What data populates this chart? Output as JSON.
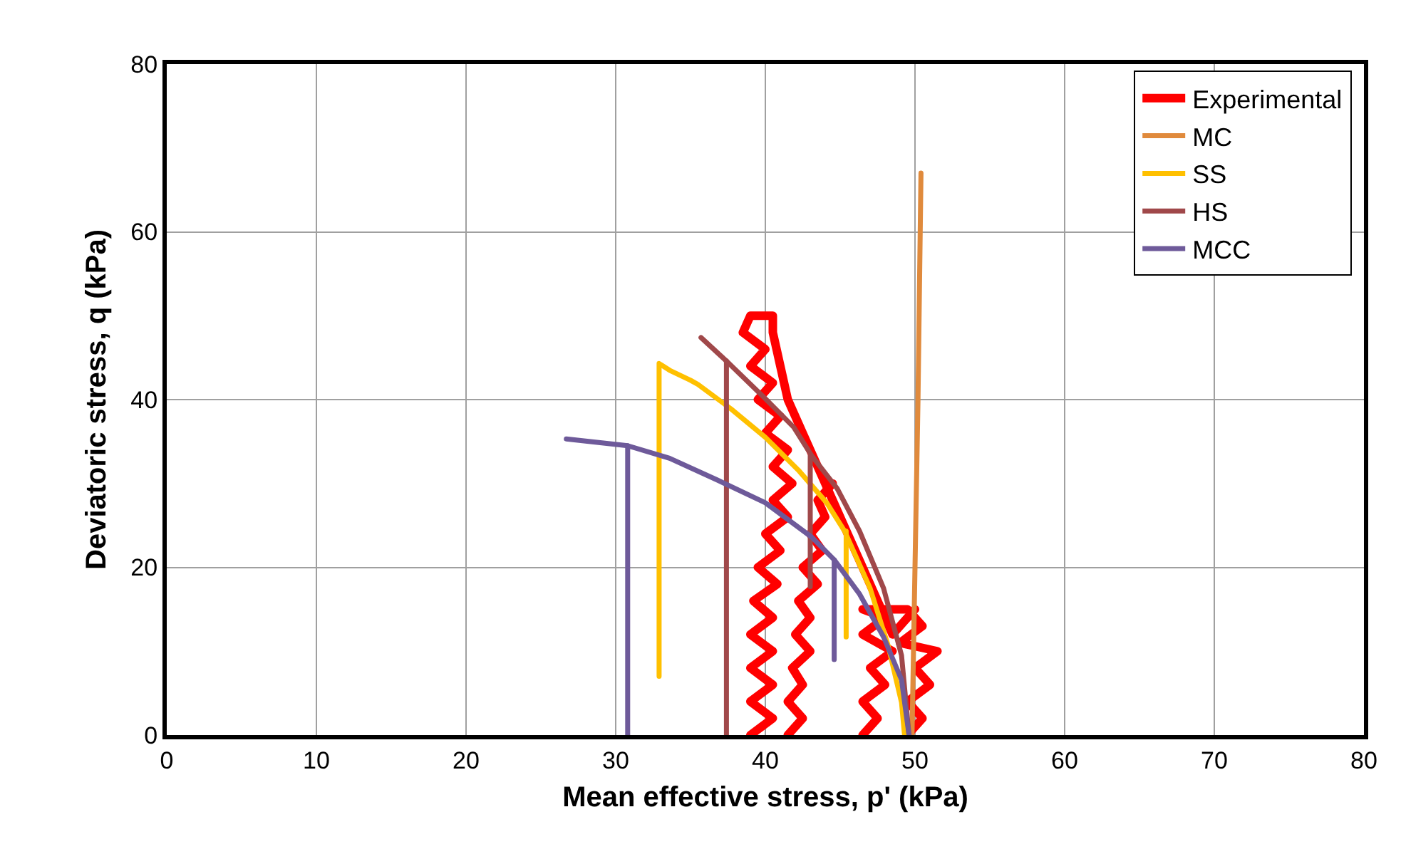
{
  "chart_data": {
    "type": "line",
    "xlabel": "Mean effective stress, p' (kPa)",
    "ylabel": "Deviatoric stress, q (kPa)",
    "xlim": [
      0,
      80
    ],
    "ylim": [
      0,
      80
    ],
    "xticks": [
      0,
      10,
      20,
      30,
      40,
      50,
      60,
      70,
      80
    ],
    "yticks": [
      0,
      20,
      40,
      60,
      80
    ],
    "grid": true,
    "legend": "top right",
    "marker": "none",
    "line_style": "solid",
    "series": [
      {
        "name": "Experimental",
        "color": "#ff0000",
        "x": [
          39,
          40.5,
          39,
          40.5,
          39,
          40.5,
          39,
          40.5,
          39.2,
          40.8,
          39.5,
          41,
          40,
          41.5,
          40.5,
          41.8,
          40.5,
          41.5,
          40,
          41,
          39.5,
          40.5,
          39,
          40,
          38.5,
          39,
          40.5,
          40.5,
          41,
          41.5,
          42.5,
          43.5,
          44.5,
          45.5,
          46.5,
          47.5,
          48.5,
          50,
          null,
          41.5,
          42.5,
          41.5,
          42.5,
          41.8,
          43,
          42,
          43,
          42.2,
          43.5,
          42.5,
          43.8,
          43,
          44,
          43.5,
          44.5,
          null,
          46.5,
          47.5,
          46.5,
          48,
          47,
          48.5,
          46.5,
          48,
          46.5,
          49.5,
          50.5,
          49,
          51.5,
          50,
          51,
          49.5,
          50.5,
          49.5
        ],
        "values": [
          0,
          2,
          4,
          6,
          8,
          10,
          12,
          14,
          16,
          18,
          20,
          22,
          24,
          26,
          28,
          30,
          32,
          34,
          36,
          38,
          40,
          42,
          44,
          46,
          48,
          50,
          50,
          48,
          44,
          40,
          36,
          32,
          28,
          24,
          20,
          16,
          12,
          15,
          null,
          0,
          2,
          4,
          6,
          8,
          10,
          12,
          14,
          16,
          18,
          20,
          22,
          24,
          26,
          28,
          30,
          null,
          0,
          2,
          4,
          6,
          8,
          10,
          12,
          14,
          15,
          15,
          13,
          11,
          10,
          8,
          6,
          4,
          2,
          0
        ]
      },
      {
        "name": "MC",
        "color": "#e08a3c",
        "x": [
          49.8,
          50,
          50.2,
          50.4
        ],
        "values": [
          0,
          20,
          40,
          67
        ]
      },
      {
        "name": "SS",
        "color": "#ffc000",
        "x": [
          32.9,
          32.9,
          33.6,
          35,
          35.5,
          37.7,
          40,
          42.2,
          44.1,
          45.3,
          47,
          48.2,
          49.1,
          49.3,
          null,
          45.4,
          45.4
        ],
        "values": [
          7,
          44.3,
          43.5,
          42.3,
          41.8,
          38.9,
          35.5,
          31.6,
          27.7,
          24.3,
          17.5,
          10.7,
          3.9,
          0,
          null,
          24.3,
          11.7
        ]
      },
      {
        "name": "HS",
        "color": "#a0484a",
        "x": [
          37.4,
          37.4,
          null,
          35.7,
          37.4,
          40,
          41.9,
          43.1,
          44.8,
          46.3,
          47.9,
          49.1,
          49.6,
          null,
          43,
          43
        ],
        "values": [
          0,
          44.6,
          null,
          47.4,
          44.6,
          40.1,
          36.7,
          33.3,
          29.4,
          24.3,
          17.5,
          9.5,
          0,
          null,
          33.3,
          17.7
        ]
      },
      {
        "name": "MCC",
        "color": "#6e5a9a",
        "x": [
          30.8,
          30.8,
          null,
          26.7,
          30.8,
          33.6,
          36.8,
          40,
          43.1,
          44.6,
          46.3,
          47.9,
          49.1,
          49.6,
          null,
          44.6,
          44.6
        ],
        "values": [
          0,
          34.5,
          null,
          35.3,
          34.5,
          33,
          30.4,
          27.7,
          23.6,
          20.9,
          16.8,
          11.7,
          6.6,
          0,
          null,
          20.9,
          9
        ]
      }
    ]
  }
}
